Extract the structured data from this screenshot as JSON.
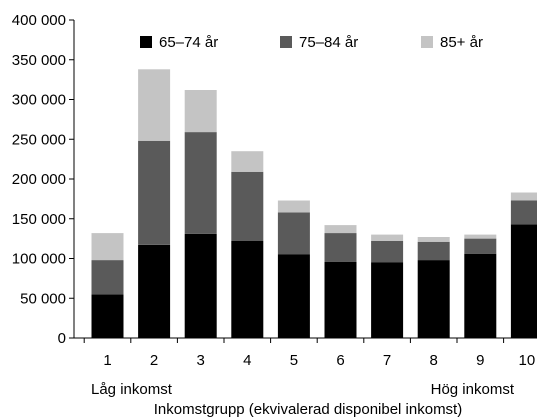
{
  "chart_data": {
    "type": "bar",
    "stacked": true,
    "title": "",
    "xlabel": "Inkomstgrupp (ekvivalerad disponibel inkomst)",
    "ylabel": "",
    "x_notes": {
      "left": "Låg inkomst",
      "right": "Hög inkomst"
    },
    "categories": [
      "1",
      "2",
      "3",
      "4",
      "5",
      "6",
      "7",
      "8",
      "9",
      "10"
    ],
    "ylim": [
      0,
      400000
    ],
    "yticks": [
      0,
      50000,
      100000,
      150000,
      200000,
      250000,
      300000,
      350000,
      400000
    ],
    "ytick_labels": [
      "0",
      "50 000",
      "100 000",
      "150 000",
      "200 000",
      "250 000",
      "300 000",
      "350 000",
      "400 000"
    ],
    "grid": false,
    "legend_position": "top",
    "series": [
      {
        "name": "65–74 år",
        "color": "#000000",
        "values": [
          55000,
          117000,
          131000,
          122000,
          105000,
          96000,
          95000,
          98000,
          106000,
          143000
        ]
      },
      {
        "name": "75–84 år",
        "color": "#5a5a5a",
        "values": [
          43000,
          131000,
          128000,
          87000,
          53000,
          36000,
          27000,
          23000,
          19000,
          30000
        ]
      },
      {
        "name": "85+ år",
        "color": "#c4c4c4",
        "values": [
          34000,
          90000,
          53000,
          26000,
          15000,
          10000,
          8000,
          6000,
          5000,
          10000
        ]
      }
    ]
  }
}
